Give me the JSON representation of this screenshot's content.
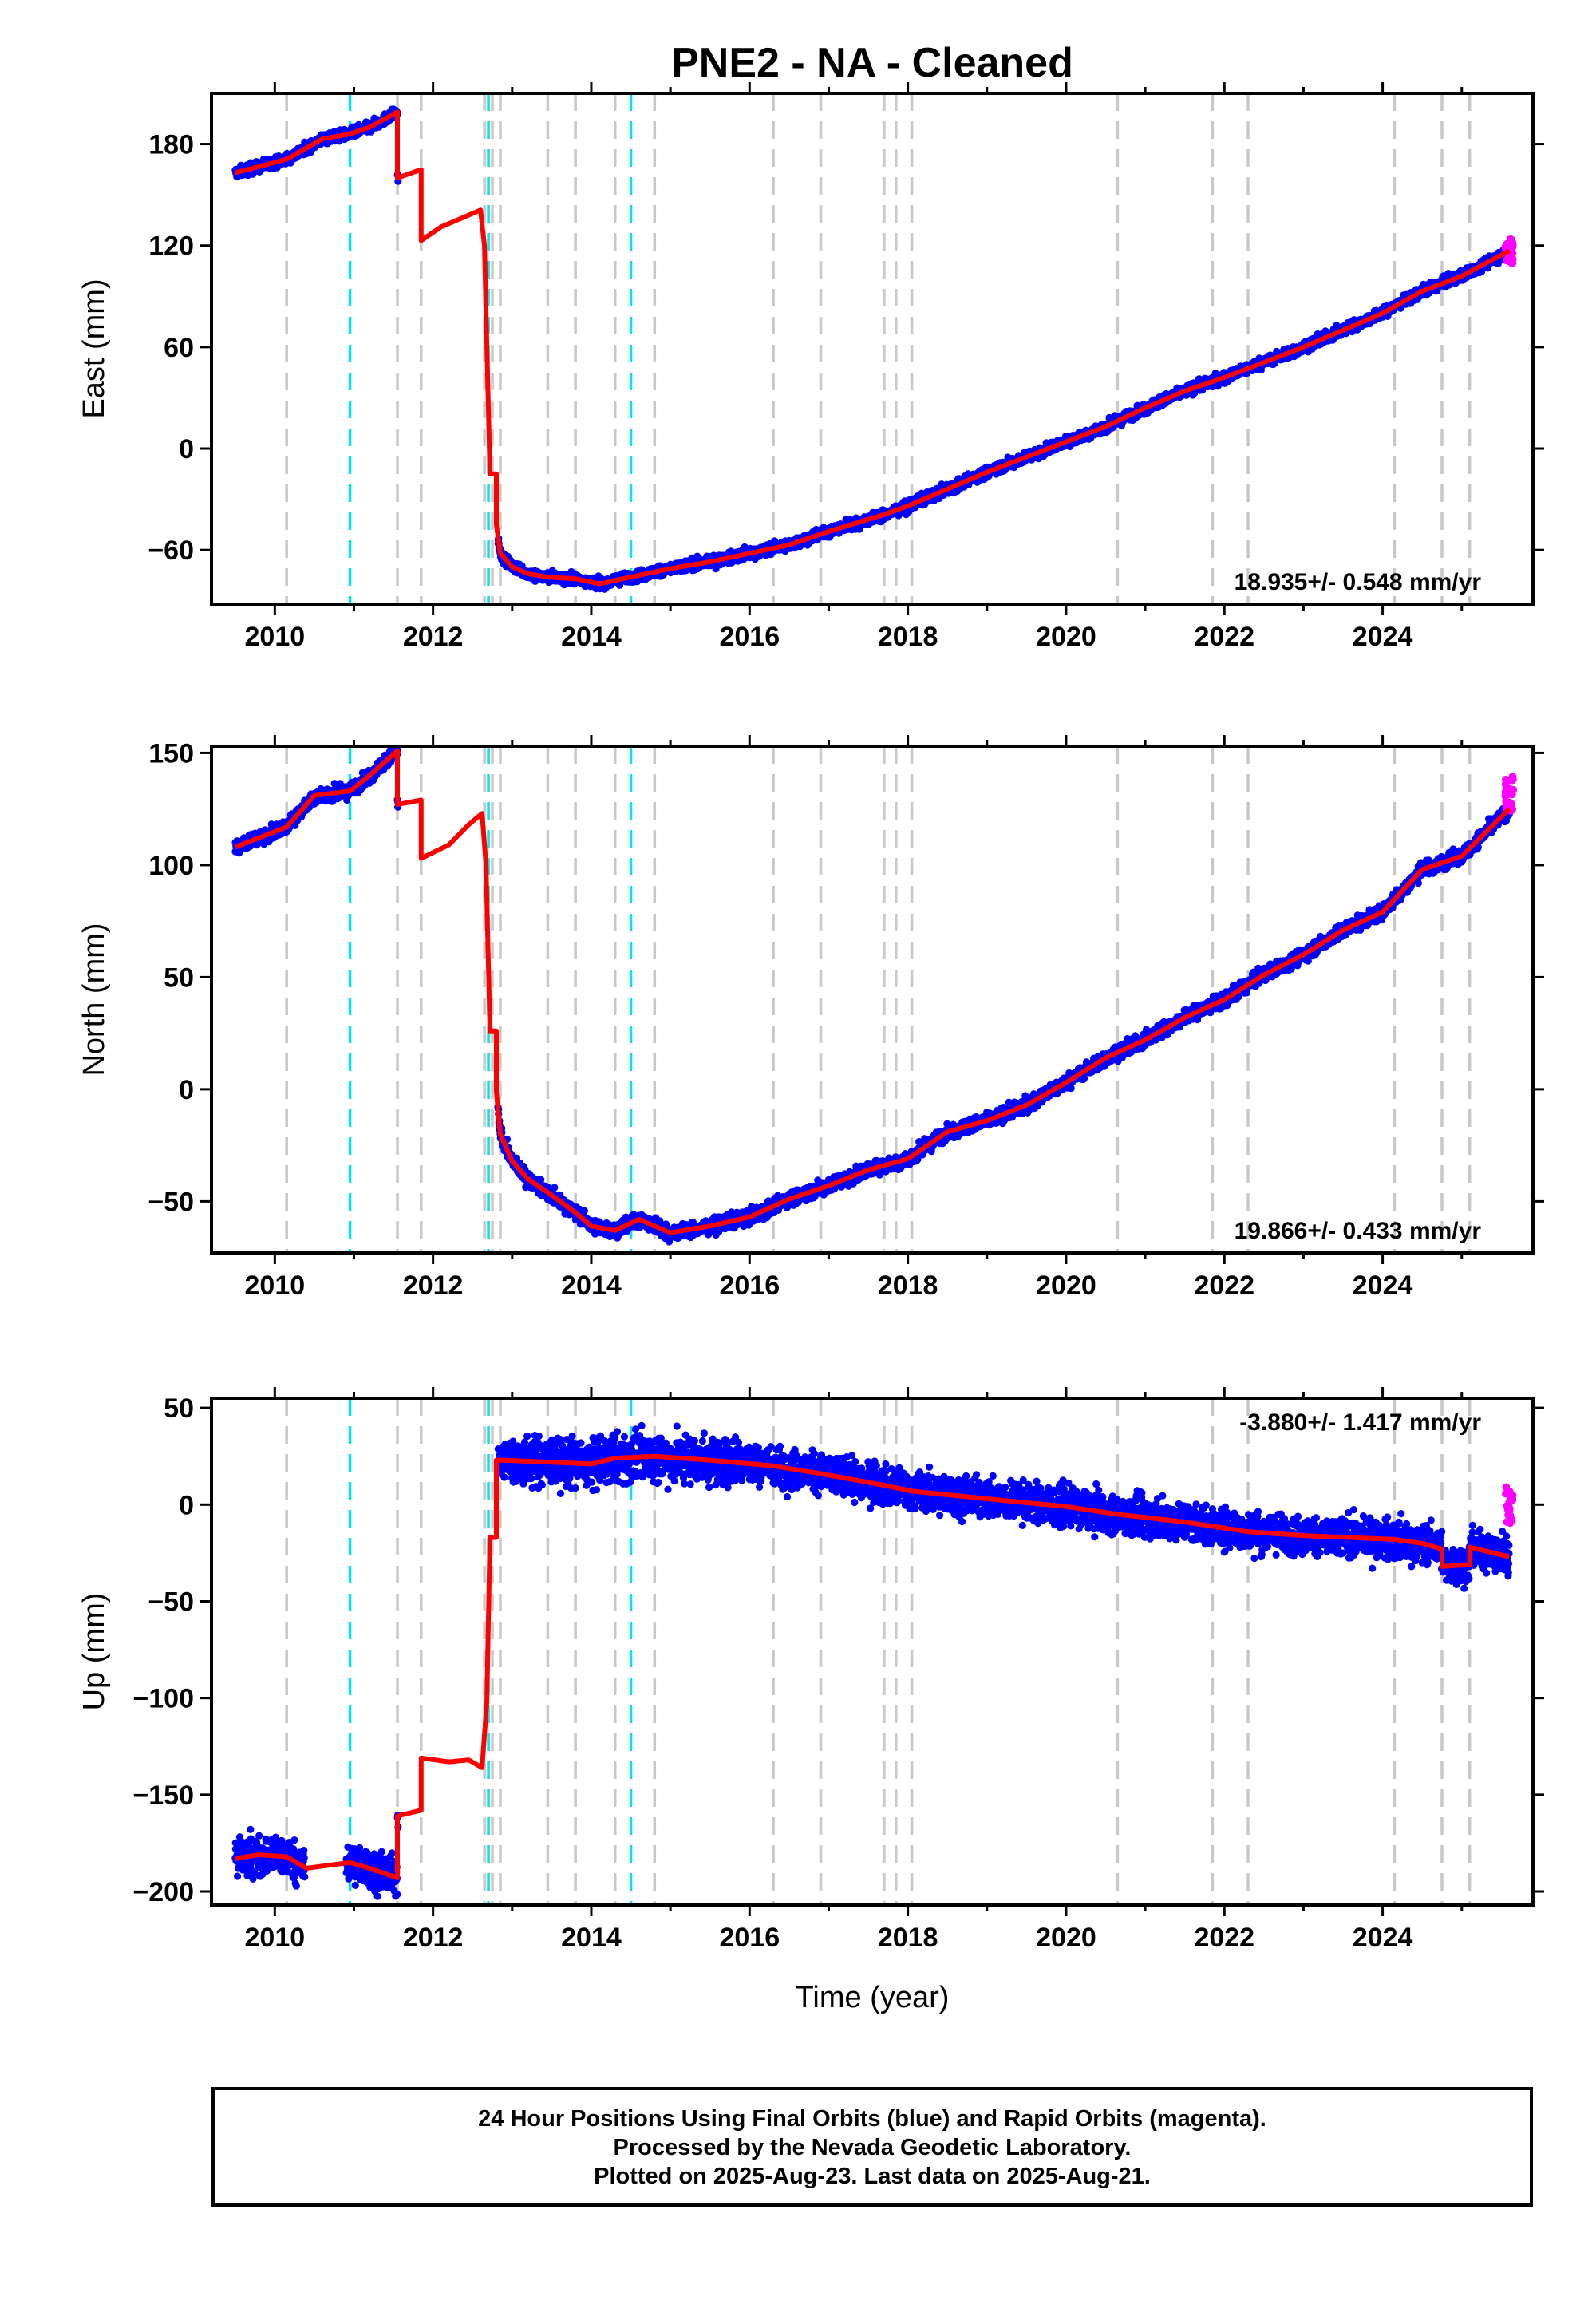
{
  "title": "PNE2  - NA - Cleaned",
  "xlabel": "Time (year)",
  "footer": {
    "line1": "24 Hour Positions Using Final Orbits (blue) and Rapid Orbits (magenta).",
    "line2": "Processed by the Nevada Geodetic Laboratory.",
    "line3": "Plotted on 2025-Aug-23. Last data on 2025-Aug-21."
  },
  "colors": {
    "final_orbits": "#0000ff",
    "rapid_orbits": "#ff00ff",
    "model": "#ff0000",
    "event_gray": "#c8c8c8",
    "event_cyan": "#00e5ee"
  },
  "chart_data": [
    {
      "type": "scatter",
      "ylabel": "East (mm)",
      "xlim": [
        2009.2,
        2025.9
      ],
      "ylim": [
        -92,
        210
      ],
      "xticks": [
        2010,
        2012,
        2014,
        2016,
        2018,
        2020,
        2022,
        2024
      ],
      "yticks": [
        -60,
        0,
        60,
        120,
        180
      ],
      "rate": "18.935+/- 0.548 mm/yr",
      "rate_position": "bottom-right",
      "gray_events": [
        2010.15,
        2011.55,
        2011.85,
        2012.65,
        2012.75,
        2012.85,
        2013.45,
        2013.8,
        2014.3,
        2014.8,
        2016.3,
        2016.9,
        2017.7,
        2017.85,
        2018.05,
        2020.65,
        2021.85,
        2022.3,
        2024.15,
        2024.75,
        2025.1
      ],
      "cyan_events": [
        2010.95,
        2012.7,
        2014.5
      ],
      "segments": [
        {
          "x": [
            2009.5,
            2010.15,
            2010.6,
            2010.95,
            2011.2,
            2011.55
          ],
          "y": [
            163,
            171,
            183,
            186,
            190,
            199
          ]
        },
        {
          "x": [
            2011.55,
            2011.85
          ],
          "y": [
            160,
            165
          ]
        },
        {
          "x": [
            2011.85,
            2012.1,
            2012.4,
            2012.6
          ],
          "y": [
            123,
            131,
            137,
            141
          ]
        },
        {
          "x": [
            2012.6,
            2012.65
          ],
          "y": [
            141,
            120
          ]
        },
        {
          "x": [
            2012.65,
            2012.72
          ],
          "y": [
            120,
            -15
          ]
        },
        {
          "x": [
            2012.72,
            2012.8
          ],
          "y": [
            -15,
            -15
          ]
        },
        {
          "x": [
            2012.8,
            2012.85,
            2013.0,
            2013.2,
            2013.45,
            2013.8,
            2014.1,
            2014.5,
            2015.0,
            2015.5,
            2016.0,
            2016.5,
            2017.0,
            2017.7,
            2018.0,
            2018.5,
            2019.0,
            2019.5,
            2020.0,
            2020.5,
            2021.0,
            2021.5,
            2022.0,
            2022.5,
            2023.0,
            2023.5,
            2024.0,
            2024.5,
            2025.0,
            2025.6
          ],
          "y": [
            -45,
            -62,
            -70,
            -74,
            -76,
            -77,
            -80,
            -76,
            -71,
            -67,
            -62,
            -57,
            -49,
            -39,
            -34,
            -24,
            -14,
            -5,
            4,
            13,
            24,
            34,
            42,
            51,
            60,
            70,
            80,
            93,
            102,
            117
          ]
        }
      ],
      "rapid_x": [
        2025.55,
        2025.65
      ],
      "rapid_y": [
        108,
        124
      ]
    },
    {
      "type": "scatter",
      "ylabel": "North (mm)",
      "xlim": [
        2009.2,
        2025.9
      ],
      "ylim": [
        -73,
        153
      ],
      "xticks": [
        2010,
        2012,
        2014,
        2016,
        2018,
        2020,
        2022,
        2024
      ],
      "yticks": [
        -50,
        0,
        50,
        100,
        150
      ],
      "rate": "19.866+/- 0.433 mm/yr",
      "rate_position": "bottom-right",
      "gray_events": [
        2010.15,
        2011.55,
        2011.85,
        2012.65,
        2012.75,
        2012.85,
        2013.45,
        2013.8,
        2014.3,
        2014.8,
        2016.3,
        2016.9,
        2017.7,
        2017.85,
        2018.05,
        2020.65,
        2021.85,
        2022.3,
        2024.15,
        2024.75,
        2025.1
      ],
      "cyan_events": [
        2010.95,
        2012.7,
        2014.5
      ],
      "segments": [
        {
          "x": [
            2009.5,
            2010.15,
            2010.5,
            2010.95,
            2011.2,
            2011.55
          ],
          "y": [
            108,
            117,
            131,
            133,
            140,
            151
          ]
        },
        {
          "x": [
            2011.55,
            2011.85
          ],
          "y": [
            127,
            129
          ]
        },
        {
          "x": [
            2011.85,
            2012.2,
            2012.45,
            2012.62
          ],
          "y": [
            103,
            109,
            118,
            123
          ]
        },
        {
          "x": [
            2012.62,
            2012.67
          ],
          "y": [
            123,
            100
          ]
        },
        {
          "x": [
            2012.67,
            2012.72
          ],
          "y": [
            100,
            26
          ]
        },
        {
          "x": [
            2012.72,
            2012.8
          ],
          "y": [
            26,
            26
          ]
        },
        {
          "x": [
            2012.8,
            2012.85,
            2013.0,
            2013.2,
            2013.45,
            2013.8,
            2014.0,
            2014.3,
            2014.6,
            2015.0,
            2015.5,
            2016.0,
            2016.5,
            2017.0,
            2017.5,
            2018.0,
            2018.5,
            2019.0,
            2019.5,
            2020.0,
            2020.5,
            2021.0,
            2021.5,
            2022.0,
            2022.5,
            2023.0,
            2023.5,
            2024.0,
            2024.5,
            2025.0,
            2025.6
          ],
          "y": [
            -1,
            -20,
            -32,
            -40,
            -46,
            -55,
            -61,
            -63,
            -58,
            -64,
            -61,
            -57,
            -49,
            -43,
            -36,
            -31,
            -19,
            -14,
            -7,
            3,
            14,
            22,
            32,
            40,
            51,
            60,
            71,
            79,
            98,
            104,
            125
          ]
        }
      ],
      "rapid_x": [
        2025.55,
        2025.65
      ],
      "rapid_y": [
        124,
        140
      ]
    },
    {
      "type": "scatter",
      "ylabel": "Up (mm)",
      "xlim": [
        2009.2,
        2025.9
      ],
      "ylim": [
        -207,
        55
      ],
      "xticks": [
        2010,
        2012,
        2014,
        2016,
        2018,
        2020,
        2022,
        2024
      ],
      "yticks": [
        -200,
        -150,
        -100,
        -50,
        0,
        50
      ],
      "rate": "-3.880+/- 1.417 mm/yr",
      "rate_position": "top-right",
      "gray_events": [
        2010.15,
        2011.55,
        2011.85,
        2012.65,
        2012.75,
        2012.85,
        2013.45,
        2013.8,
        2014.3,
        2014.8,
        2016.3,
        2016.9,
        2017.7,
        2017.85,
        2018.05,
        2020.65,
        2021.85,
        2022.3,
        2024.15,
        2024.75,
        2025.1
      ],
      "cyan_events": [
        2010.95,
        2012.7,
        2014.5
      ],
      "segments": [
        {
          "x": [
            2009.5,
            2009.8,
            2010.15,
            2010.4,
            2010.95,
            2011.2,
            2011.55
          ],
          "y": [
            -183,
            -181,
            -182,
            -188,
            -185,
            -188,
            -193
          ]
        },
        {
          "x": [
            2011.55,
            2011.85
          ],
          "y": [
            -161,
            -158
          ]
        },
        {
          "x": [
            2011.85,
            2012.2,
            2012.45,
            2012.62
          ],
          "y": [
            -131,
            -133,
            -132,
            -136
          ]
        },
        {
          "x": [
            2012.62,
            2012.68
          ],
          "y": [
            -136,
            -102
          ]
        },
        {
          "x": [
            2012.68,
            2012.72
          ],
          "y": [
            -102,
            -17
          ]
        },
        {
          "x": [
            2012.72,
            2012.8
          ],
          "y": [
            -17,
            -17
          ]
        },
        {
          "x": [
            2012.8,
            2012.85,
            2013.45,
            2014.0,
            2014.3,
            2014.8,
            2015.5,
            2016.3,
            2016.9,
            2017.7,
            2018.05,
            2019.0,
            2020.0,
            2020.65,
            2021.5,
            2022.3,
            2023.0,
            2024.15,
            2024.5,
            2024.75
          ],
          "y": [
            23,
            23,
            22,
            21,
            24,
            25,
            23,
            20,
            16,
            10,
            7,
            3,
            -1,
            -5,
            -9,
            -14,
            -16,
            -18,
            -20,
            -23
          ]
        },
        {
          "x": [
            2024.75,
            2025.1
          ],
          "y": [
            -32,
            -31
          ]
        },
        {
          "x": [
            2025.1,
            2025.6
          ],
          "y": [
            -22,
            -27
          ]
        }
      ],
      "rapid_x": [
        2025.55,
        2025.65
      ],
      "rapid_y": [
        -10,
        12
      ]
    }
  ]
}
